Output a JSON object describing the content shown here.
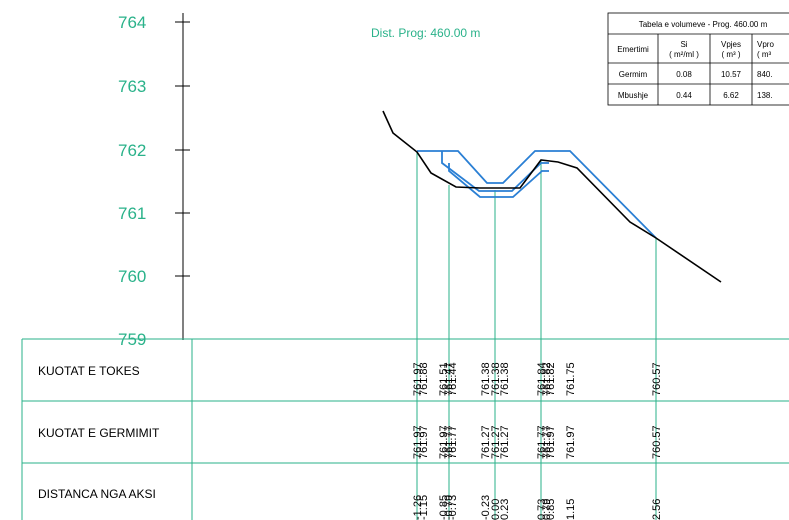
{
  "elevation_labels": [
    "764",
    "763",
    "762",
    "761",
    "760",
    "759"
  ],
  "distance_title": "Dist. Prog: 460.00 m",
  "volume_table": {
    "title": "Tabela e volumeve - Prog. 460.00 m",
    "headers": [
      "Emertimi",
      "Si",
      "( m²/ml )",
      "Vpjes",
      "( m³ )",
      "Vpro",
      "( m³"
    ],
    "rows": [
      {
        "name": "Germim",
        "si": "0.08",
        "vpjes": "10.57",
        "vpro": "840."
      },
      {
        "name": "Mbushje",
        "si": "0.44",
        "vpjes": "6.62",
        "vpro": "138."
      }
    ]
  },
  "row_labels": {
    "tokes": "KUOTAT E TOKES",
    "germimit": "KUOTAT E GERMIMIT",
    "distanca": "DISTANCA NGA AKSI"
  },
  "stations": [
    {
      "dist": "-1.26",
      "tokes": "761.97",
      "germ": "761.97"
    },
    {
      "dist": "-1.15",
      "tokes": "761.88",
      "germ": "761.97"
    },
    {
      "dist": "-0.85",
      "tokes": "761.51",
      "germ": "761.97"
    },
    {
      "dist": "-0.79",
      "tokes": "761.47",
      "germ": "761.77"
    },
    {
      "dist": "-0.73",
      "tokes": "761.44",
      "germ": "761.77"
    },
    {
      "dist": "-0.23",
      "tokes": "761.38",
      "germ": "761.27"
    },
    {
      "dist": "0.00",
      "tokes": "761.38",
      "germ": "761.27"
    },
    {
      "dist": "0.23",
      "tokes": "761.38",
      "germ": "761.27"
    },
    {
      "dist": "0.73",
      "tokes": "761.84",
      "germ": "761.77"
    },
    {
      "dist": "0.79",
      "tokes": "761.82",
      "germ": "761.77"
    },
    {
      "dist": "0.85",
      "tokes": "761.82",
      "germ": "761.97"
    },
    {
      "dist": "1.15",
      "tokes": "761.75",
      "germ": "761.97"
    },
    {
      "dist": "2.56",
      "tokes": "760.57",
      "germ": "760.57"
    }
  ],
  "colors": {
    "axis_green": "#2ab28a",
    "design_blue": "#2a7fd4",
    "ground_black": "#000000"
  }
}
